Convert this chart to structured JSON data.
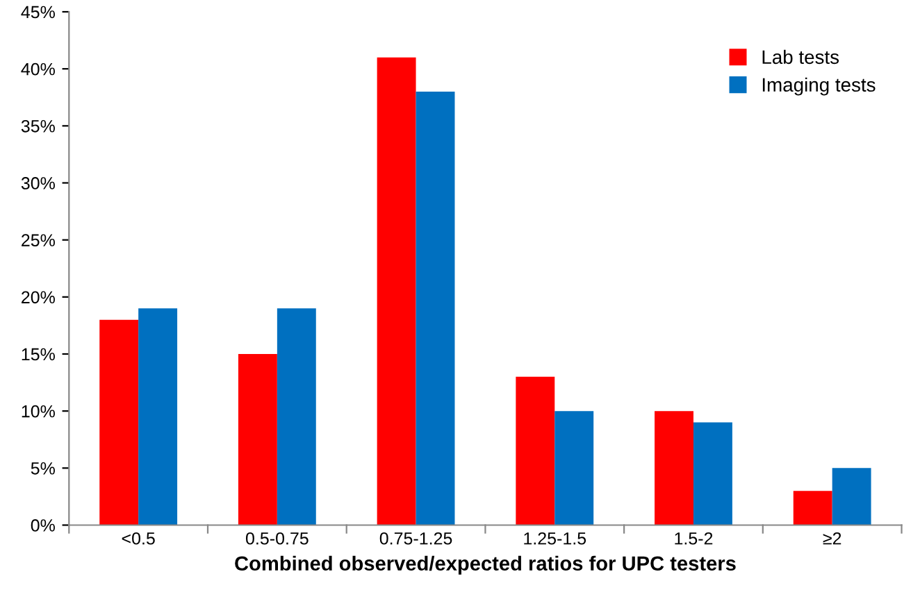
{
  "chart_data": {
    "type": "bar",
    "xlabel": "Combined observed/expected ratios for UPC testers",
    "categories": [
      "<0.5",
      "0.5-0.75",
      "0.75-1.25",
      "1.25-1.5",
      "1.5-2",
      "≥2"
    ],
    "series": [
      {
        "name": "Lab tests",
        "color": "#ff0000",
        "values": [
          18,
          15,
          41,
          13,
          10,
          3
        ]
      },
      {
        "name": "Imaging tests",
        "color": "#0070c0",
        "values": [
          19,
          19,
          38,
          10,
          9,
          5
        ]
      }
    ],
    "ylim": [
      0,
      45
    ],
    "yticks": [
      {
        "value": 0,
        "label": "0%"
      },
      {
        "value": 5,
        "label": "5%"
      },
      {
        "value": 10,
        "label": "10%"
      },
      {
        "value": 15,
        "label": "15%"
      },
      {
        "value": 20,
        "label": "20%"
      },
      {
        "value": 25,
        "label": "25%"
      },
      {
        "value": 30,
        "label": "30%"
      },
      {
        "value": 35,
        "label": "35%"
      },
      {
        "value": 40,
        "label": "40%"
      },
      {
        "value": 45,
        "label": "45%"
      }
    ],
    "grid": false,
    "legend": "top right"
  }
}
